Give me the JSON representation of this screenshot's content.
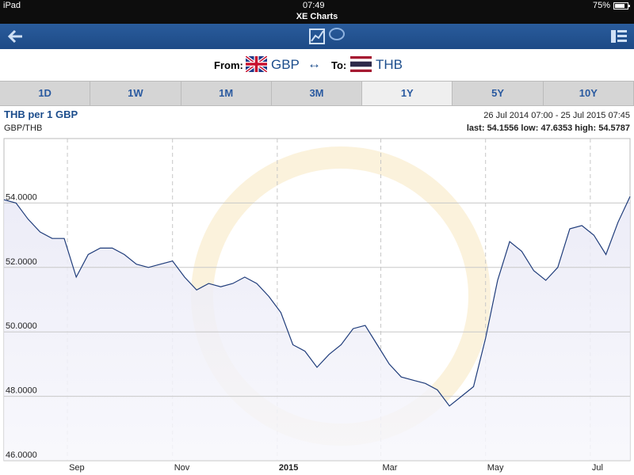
{
  "status_bar": {
    "device": "iPad",
    "time": "07:49",
    "battery": "75%",
    "app_title": "XE Charts"
  },
  "currency_selector": {
    "from_label": "From:",
    "from": "GBP",
    "arrow": "↔",
    "to_label": "To:",
    "to": "THB"
  },
  "tabs": {
    "items": [
      "1D",
      "1W",
      "1M",
      "3M",
      "1Y",
      "5Y",
      "10Y"
    ],
    "selected": 4
  },
  "chart_data": {
    "type": "line",
    "title": "THB per 1 GBP",
    "subtitle": "GBP/THB",
    "date_range": "26 Jul 2014 07:00 - 25 Jul 2015 07:45",
    "stats": [
      {
        "label": "last:",
        "value": 54.1556
      },
      {
        "label": "low:",
        "value": 47.6353
      },
      {
        "label": "high:",
        "value": 54.5787
      }
    ],
    "categories": [
      null,
      null,
      null,
      null,
      null,
      null,
      null,
      null,
      null,
      null,
      null,
      null,
      null,
      null,
      null,
      null,
      null,
      null,
      null,
      null,
      null,
      null,
      null,
      null,
      null,
      null,
      null,
      null,
      null,
      null,
      null,
      null,
      null,
      null,
      null,
      null,
      null,
      null,
      null,
      null,
      null,
      null,
      null,
      null,
      null,
      null,
      null,
      null,
      null,
      null,
      null,
      null,
      null
    ],
    "values": [
      54.1,
      54.0,
      53.5,
      53.1,
      52.9,
      52.9,
      51.7,
      52.4,
      52.6,
      52.6,
      52.4,
      52.1,
      52.0,
      52.1,
      52.2,
      51.7,
      51.3,
      51.5,
      51.4,
      51.5,
      51.7,
      51.5,
      51.1,
      50.6,
      49.6,
      49.4,
      48.9,
      49.3,
      49.6,
      50.1,
      50.2,
      49.6,
      49.0,
      48.6,
      48.5,
      48.4,
      48.2,
      47.7,
      48.0,
      48.3,
      49.8,
      51.6,
      52.8,
      52.5,
      51.9,
      51.6,
      52.0,
      53.2,
      53.3,
      53.0,
      52.4,
      53.4,
      54.2
    ],
    "color": "#1f3c7a",
    "xlim": [
      0,
      52
    ],
    "xticks": [
      {
        "value": 5.27,
        "label": "Sep"
      },
      {
        "value": 14.0,
        "label": "Nov"
      },
      {
        "value": 22.7,
        "label": "2015"
      },
      {
        "value": 31.3,
        "label": "Mar"
      },
      {
        "value": 40.0,
        "label": "May"
      },
      {
        "value": 48.7,
        "label": "Jul"
      }
    ],
    "ylim": [
      46,
      56
    ],
    "yticks": [
      {
        "value": 46,
        "label": "46.0000"
      },
      {
        "value": 48,
        "label": "48.0000"
      },
      {
        "value": 50,
        "label": "50.0000"
      },
      {
        "value": 52,
        "label": "52.0000"
      },
      {
        "value": 54,
        "label": "54.0000"
      }
    ],
    "grid": true
  }
}
